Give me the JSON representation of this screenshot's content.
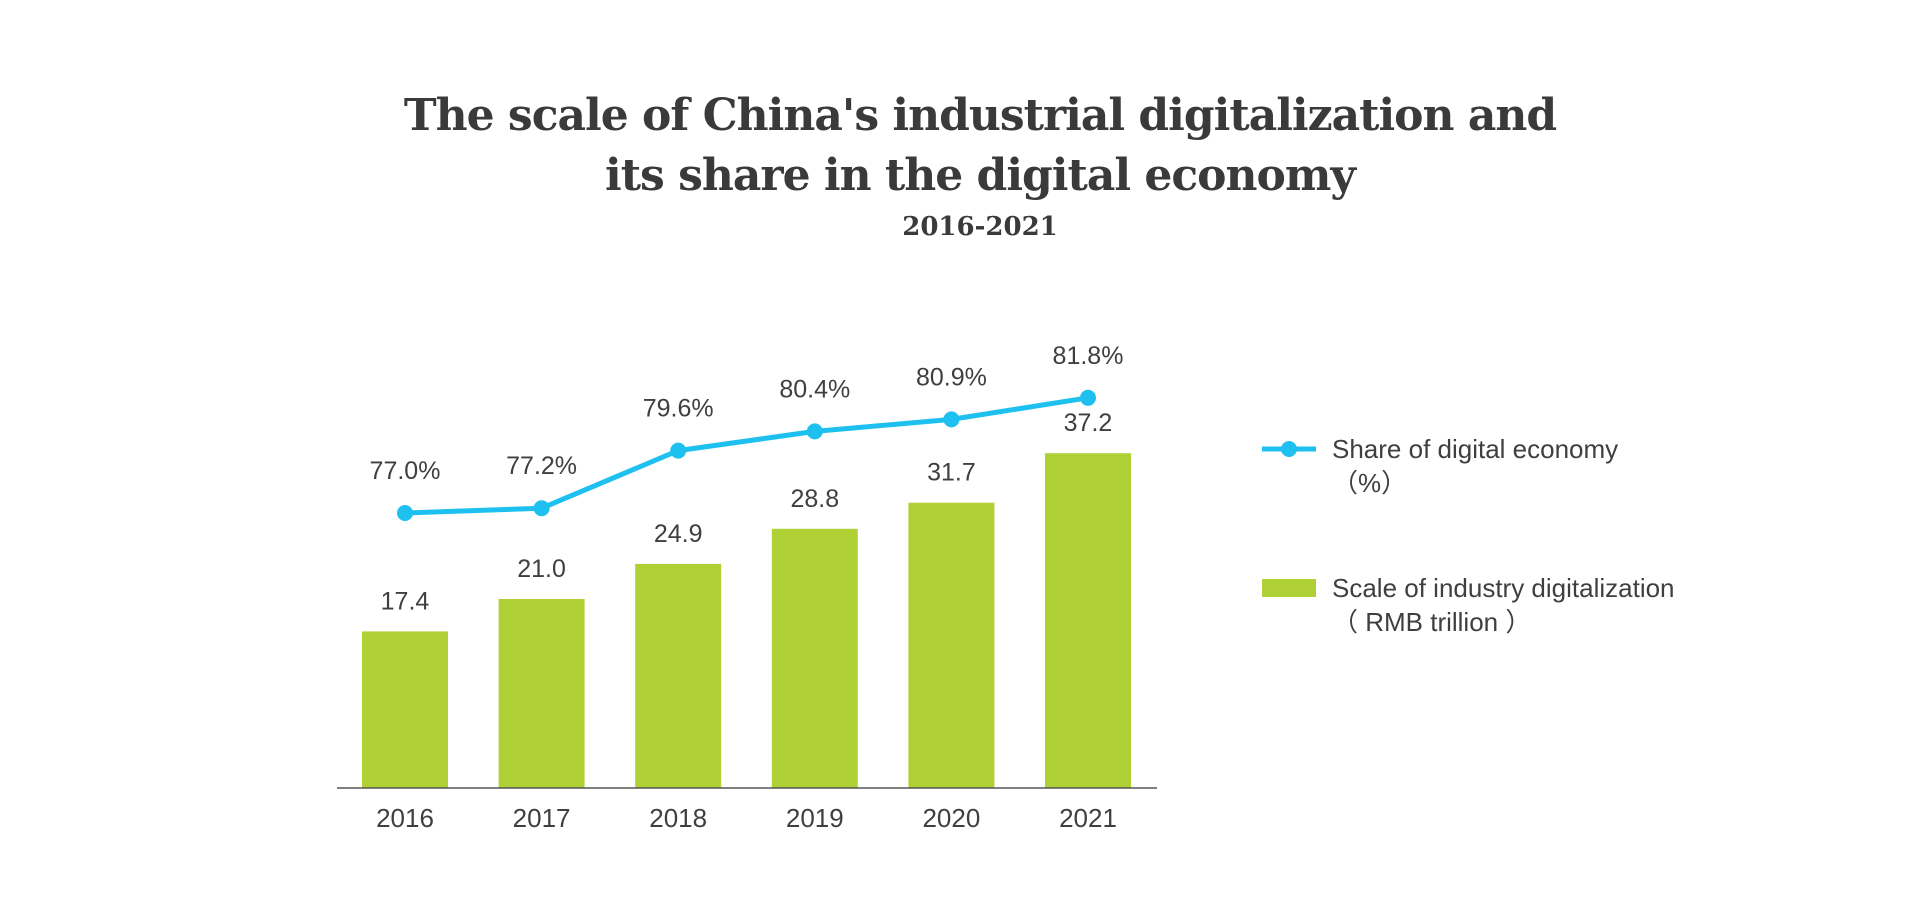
{
  "chart_data": {
    "type": "bar+line",
    "title_lines": [
      "The scale of China's industrial digitalization and",
      "its share in the digital economy"
    ],
    "subtitle": "2016-2021",
    "categories": [
      "2016",
      "2017",
      "2018",
      "2019",
      "2020",
      "2021"
    ],
    "series": [
      {
        "name": "Scale of industry digitalization",
        "name_line2": "（ RMB trillion ）",
        "type": "bar",
        "color": "#b0d136",
        "values": [
          17.4,
          21.0,
          24.9,
          28.8,
          31.7,
          37.2
        ],
        "labels": [
          "17.4",
          "21.0",
          "24.9",
          "28.8",
          "31.7",
          "37.2"
        ],
        "ylim": [
          0,
          40
        ]
      },
      {
        "name": "Share of digital economy",
        "name_line2": "（%）",
        "type": "line",
        "color": "#1ec0ef",
        "values": [
          77.0,
          77.2,
          79.6,
          80.4,
          80.9,
          81.8
        ],
        "labels": [
          "77.0%",
          "77.2%",
          "79.6%",
          "80.4%",
          "80.9%",
          "81.8%"
        ],
        "ylim": [
          70,
          84
        ]
      }
    ],
    "legend_position": "right",
    "grid": false
  }
}
